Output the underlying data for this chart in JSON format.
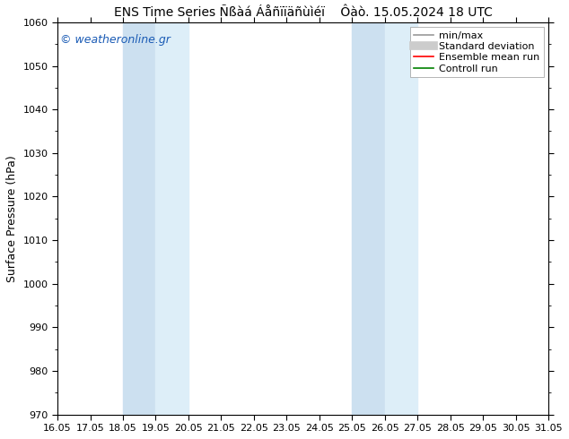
{
  "title": "ENS Time Series Ñßàá Áåñïïäñùìéï    Ôàò. 15.05.2024 18 UTC",
  "ylabel": "Surface Pressure (hPa)",
  "ylim": [
    970,
    1060
  ],
  "yticks": [
    970,
    980,
    990,
    1000,
    1010,
    1020,
    1030,
    1040,
    1050,
    1060
  ],
  "xticks": [
    16.05,
    17.05,
    18.05,
    19.05,
    20.05,
    21.05,
    22.05,
    23.05,
    24.05,
    25.05,
    26.05,
    27.05,
    28.05,
    29.05,
    30.05,
    31.05
  ],
  "xtick_labels": [
    "16.05",
    "17.05",
    "18.05",
    "19.05",
    "20.05",
    "21.05",
    "22.05",
    "23.05",
    "24.05",
    "25.05",
    "26.05",
    "27.05",
    "28.05",
    "29.05",
    "30.05",
    "31.05"
  ],
  "xlim": [
    16.05,
    31.05
  ],
  "shaded_regions": [
    {
      "x_start": 18.05,
      "x_end": 19.05,
      "color": "#cce0f0"
    },
    {
      "x_start": 19.05,
      "x_end": 20.05,
      "color": "#ddeef8"
    },
    {
      "x_start": 25.05,
      "x_end": 26.05,
      "color": "#cce0f0"
    },
    {
      "x_start": 26.05,
      "x_end": 27.05,
      "color": "#ddeef8"
    }
  ],
  "watermark": "© weatheronline.gr",
  "watermark_color": "#1a5bb5",
  "legend_items": [
    {
      "label": "min/max",
      "color": "#999999",
      "lw": 1.2
    },
    {
      "label": "Standard deviation",
      "color": "#cccccc",
      "lw": 7
    },
    {
      "label": "Ensemble mean run",
      "color": "#ff0000",
      "lw": 1.2
    },
    {
      "label": "Controll run",
      "color": "#008000",
      "lw": 1.2
    }
  ],
  "bg_color": "#ffffff",
  "font_size_title": 10,
  "font_size_axis": 9,
  "font_size_tick": 8,
  "font_size_legend": 8,
  "font_size_watermark": 9
}
